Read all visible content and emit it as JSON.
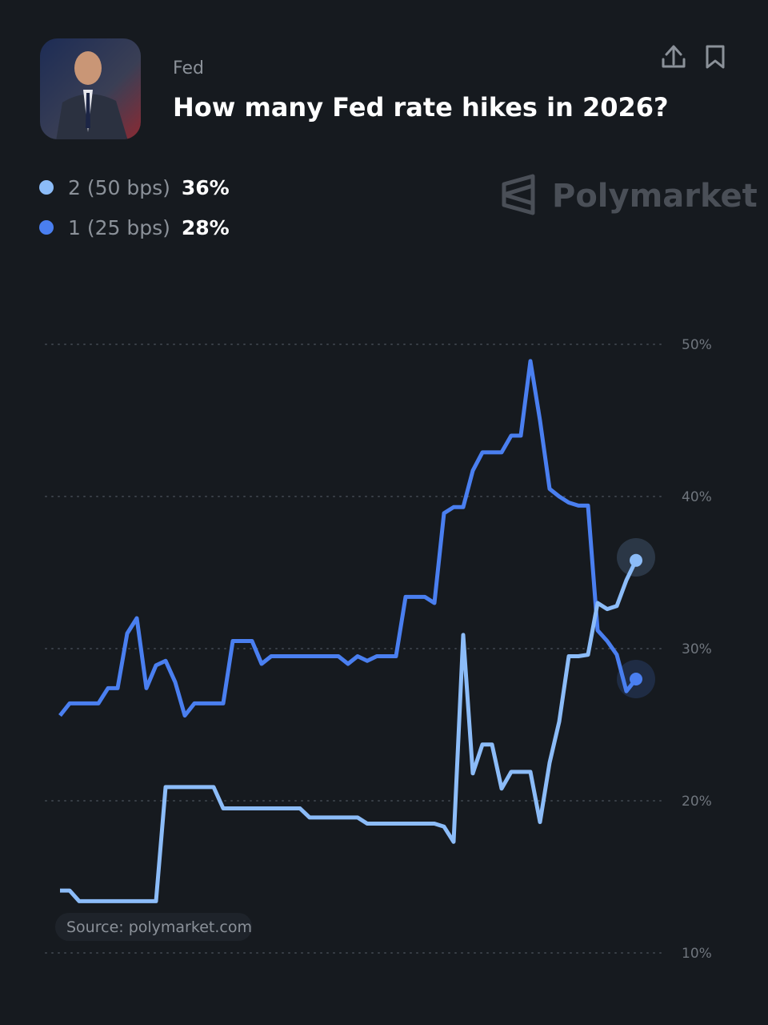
{
  "header": {
    "category": "Fed",
    "title": "How many Fed rate hikes in 2026?"
  },
  "watermark": "Polymarket",
  "source": "Source: polymarket.com",
  "chart_data": {
    "type": "line",
    "ylim": [
      10,
      50
    ],
    "yticks": [
      {
        "value": 10,
        "label": "10%"
      },
      {
        "value": 20,
        "label": "20%"
      },
      {
        "value": 30,
        "label": "30%"
      },
      {
        "value": 40,
        "label": "40%"
      },
      {
        "value": 50,
        "label": "50%"
      }
    ],
    "grid": true,
    "series": [
      {
        "name": "2 (50 bps)",
        "color": "#8cbcf8",
        "current": {
          "value": 36,
          "label": "36%"
        },
        "values": [
          14.1,
          14.1,
          13.4,
          13.4,
          13.4,
          13.4,
          13.4,
          13.4,
          13.4,
          13.4,
          13.4,
          20.9,
          20.9,
          20.9,
          20.9,
          20.9,
          20.9,
          19.5,
          19.5,
          19.5,
          19.5,
          19.5,
          19.5,
          19.5,
          19.5,
          19.5,
          18.9,
          18.9,
          18.9,
          18.9,
          18.9,
          18.9,
          18.5,
          18.5,
          18.5,
          18.5,
          18.5,
          18.5,
          18.5,
          18.5,
          18.3,
          17.3,
          30.9,
          21.8,
          23.7,
          23.7,
          20.8,
          21.9,
          21.9,
          21.9,
          18.6,
          22.5,
          25.2,
          29.5,
          29.5,
          29.6,
          33.0,
          32.6,
          32.8,
          34.5,
          35.8
        ]
      },
      {
        "name": "1 (25 bps)",
        "color": "#4a7ff0",
        "current": {
          "value": 28,
          "label": "28%"
        },
        "values": [
          25.6,
          26.4,
          26.4,
          26.4,
          26.4,
          27.4,
          27.4,
          31.0,
          32.0,
          27.4,
          28.9,
          29.2,
          27.8,
          25.6,
          26.4,
          26.4,
          26.4,
          26.4,
          30.5,
          30.5,
          30.5,
          29.0,
          29.5,
          29.5,
          29.5,
          29.5,
          29.5,
          29.5,
          29.5,
          29.5,
          29.0,
          29.5,
          29.2,
          29.5,
          29.5,
          29.5,
          33.4,
          33.4,
          33.4,
          33.0,
          38.9,
          39.3,
          39.3,
          41.7,
          42.9,
          42.9,
          42.9,
          44.0,
          44.0,
          48.9,
          45.0,
          40.5,
          40.0,
          39.6,
          39.4,
          39.4,
          31.2,
          30.5,
          29.6,
          27.2,
          28.0
        ]
      }
    ]
  }
}
